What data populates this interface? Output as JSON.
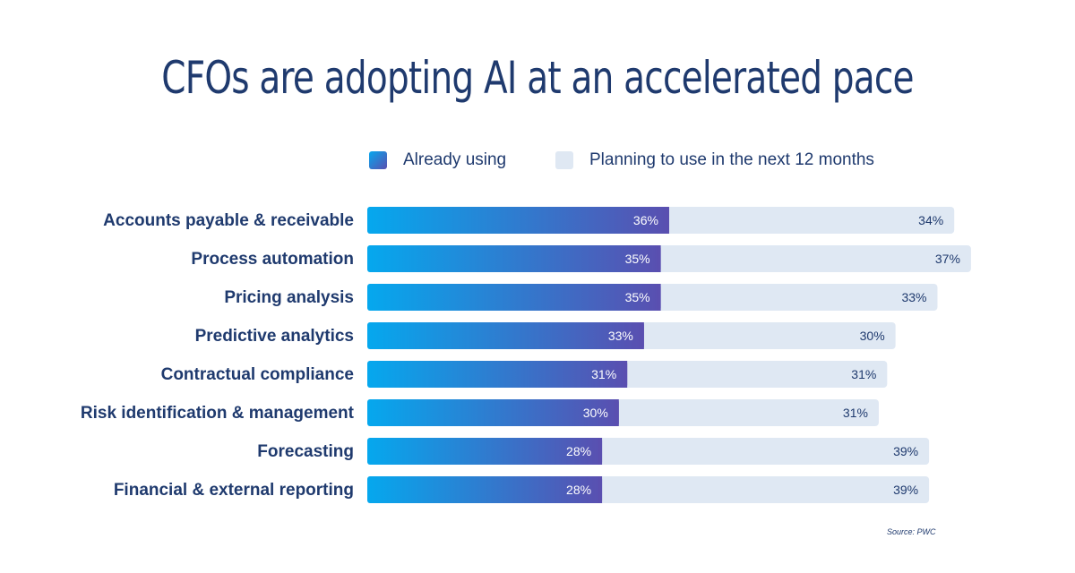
{
  "chart_data": {
    "type": "bar",
    "stacked": true,
    "orientation": "horizontal",
    "title": "CFOs are adopting AI at an accelerated pace",
    "categories": [
      "Accounts payable & receivable",
      "Process automation",
      "Pricing analysis",
      "Predictive analytics",
      "Contractual compliance",
      "Risk identification & management",
      "Forecasting",
      "Financial & external reporting"
    ],
    "series": [
      {
        "name": "Already using",
        "values": [
          36,
          35,
          35,
          33,
          31,
          30,
          28,
          28
        ],
        "labels": [
          "36%",
          "35%",
          "35%",
          "33%",
          "31%",
          "30%",
          "28%",
          "28%"
        ],
        "color_start": "#05a8ee",
        "color_end": "#5a4fb0"
      },
      {
        "name": "Planning to use in the next 12 months",
        "values": [
          34,
          37,
          33,
          30,
          31,
          31,
          39,
          39
        ],
        "labels": [
          "34%",
          "37%",
          "33%",
          "30%",
          "31%",
          "31%",
          "39%",
          "39%"
        ],
        "color": "#dfe8f3"
      }
    ],
    "legend": "top",
    "grid": false,
    "source": "Source: PWC"
  }
}
